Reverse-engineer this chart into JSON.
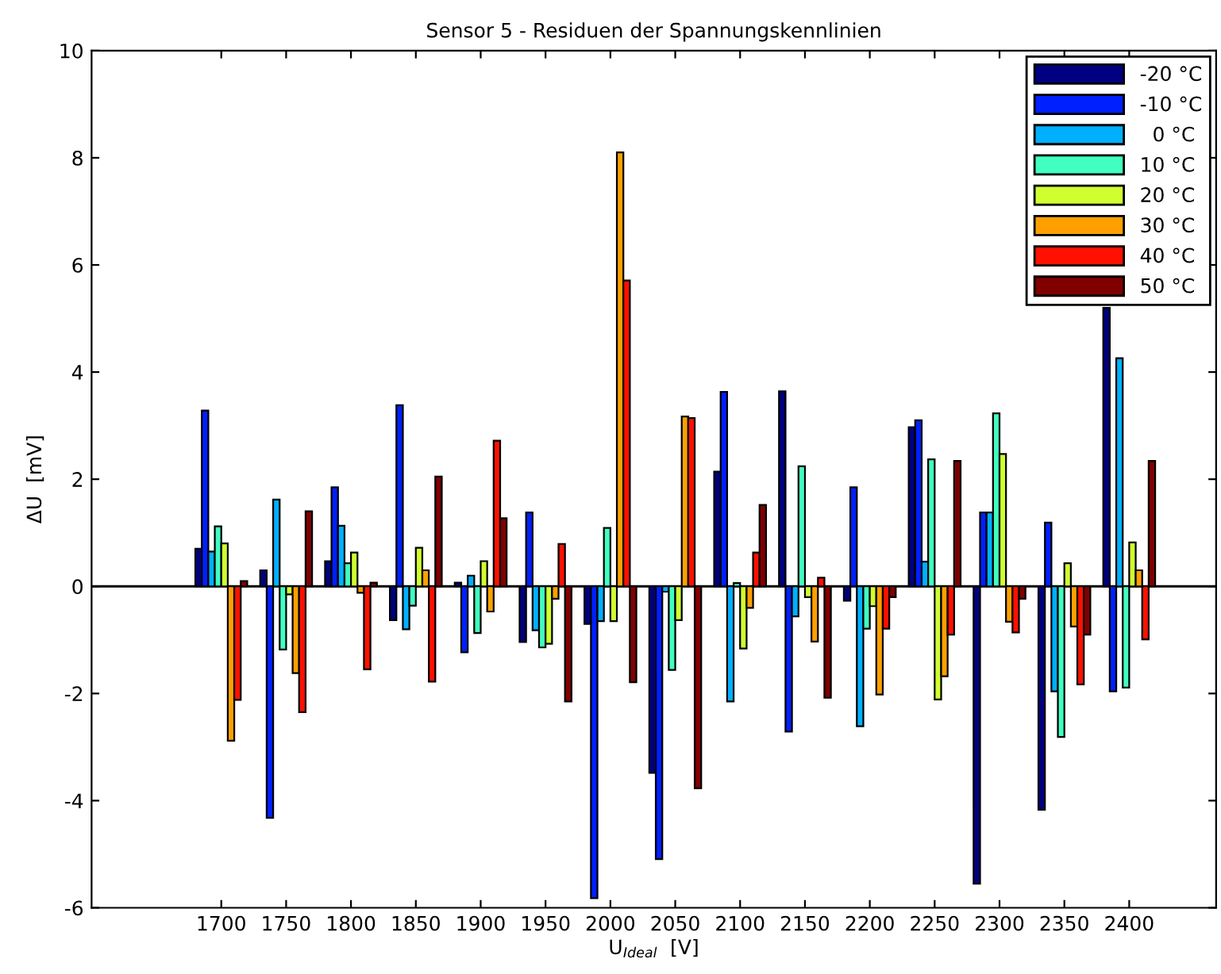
{
  "chart_data": {
    "type": "bar",
    "title": "Sensor 5 - Residuen der Spannungskennlinien",
    "xlabel": "U$_{Ideal}$  [V]",
    "ylabel": "ΔU  [mV]",
    "x": [
      1700,
      1750,
      1800,
      1850,
      1900,
      1950,
      2000,
      2050,
      2100,
      2150,
      2200,
      2250,
      2300,
      2350,
      2400
    ],
    "series": [
      {
        "name": "-20 °C",
        "color": "#000080",
        "values": [
          0.7,
          0.3,
          0.47,
          -0.63,
          0.07,
          -1.04,
          -0.7,
          -3.48,
          2.14,
          3.64,
          -0.27,
          2.97,
          -5.55,
          -4.17,
          5.2
        ]
      },
      {
        "name": "-10 °C",
        "color": "#0020ff",
        "values": [
          3.28,
          -4.32,
          1.85,
          3.38,
          -1.23,
          1.38,
          -5.82,
          -5.09,
          3.63,
          -2.71,
          1.85,
          3.1,
          1.38,
          1.19,
          -1.96
        ]
      },
      {
        "name": "  0 °C",
        "color": "#00b0ff",
        "values": [
          0.65,
          1.62,
          1.13,
          -0.8,
          0.2,
          -0.82,
          -0.65,
          -0.1,
          -2.15,
          -0.56,
          -2.61,
          0.46,
          1.38,
          -1.96,
          4.26
        ]
      },
      {
        "name": "10 °C",
        "color": "#40ffc0",
        "values": [
          1.12,
          -1.18,
          0.43,
          -0.36,
          -0.87,
          -1.14,
          1.09,
          -1.56,
          0.06,
          2.24,
          -0.79,
          2.37,
          3.23,
          -2.81,
          -1.89
        ]
      },
      {
        "name": "20 °C",
        "color": "#d0ff30",
        "values": [
          0.8,
          -0.15,
          0.63,
          0.72,
          0.47,
          -1.07,
          -0.65,
          -0.63,
          -1.16,
          -0.2,
          -0.37,
          -2.11,
          2.47,
          0.43,
          0.82
        ]
      },
      {
        "name": "30 °C",
        "color": "#ffa000",
        "values": [
          -2.88,
          -1.62,
          -0.12,
          0.3,
          -0.47,
          -0.23,
          8.1,
          3.17,
          -0.4,
          -1.03,
          -2.02,
          -1.68,
          -0.66,
          -0.75,
          0.3
        ]
      },
      {
        "name": "40 °C",
        "color": "#ff1000",
        "values": [
          -2.12,
          -2.35,
          -1.55,
          -1.78,
          2.72,
          0.79,
          5.71,
          3.14,
          0.63,
          0.16,
          -0.79,
          -0.9,
          -0.86,
          -1.83,
          -0.99
        ]
      },
      {
        "name": "50 °C",
        "color": "#800000",
        "values": [
          0.1,
          1.4,
          0.07,
          2.05,
          1.27,
          -2.15,
          -1.79,
          -3.77,
          1.52,
          -2.08,
          -0.2,
          2.34,
          -0.23,
          -0.9,
          2.34
        ]
      }
    ],
    "xlim": [
      1600,
      2467
    ],
    "xticks": [
      1700,
      1750,
      1800,
      1850,
      1900,
      1950,
      2000,
      2050,
      2100,
      2150,
      2200,
      2250,
      2300,
      2350,
      2400
    ],
    "ylim": [
      -6,
      10
    ],
    "yticks": [
      -6,
      -4,
      -2,
      0,
      2,
      4,
      6,
      8,
      10
    ],
    "ref_lines": [
      {
        "axis": "y",
        "value": 0,
        "color": "#000000"
      }
    ],
    "legend": "top right",
    "grid": false
  }
}
